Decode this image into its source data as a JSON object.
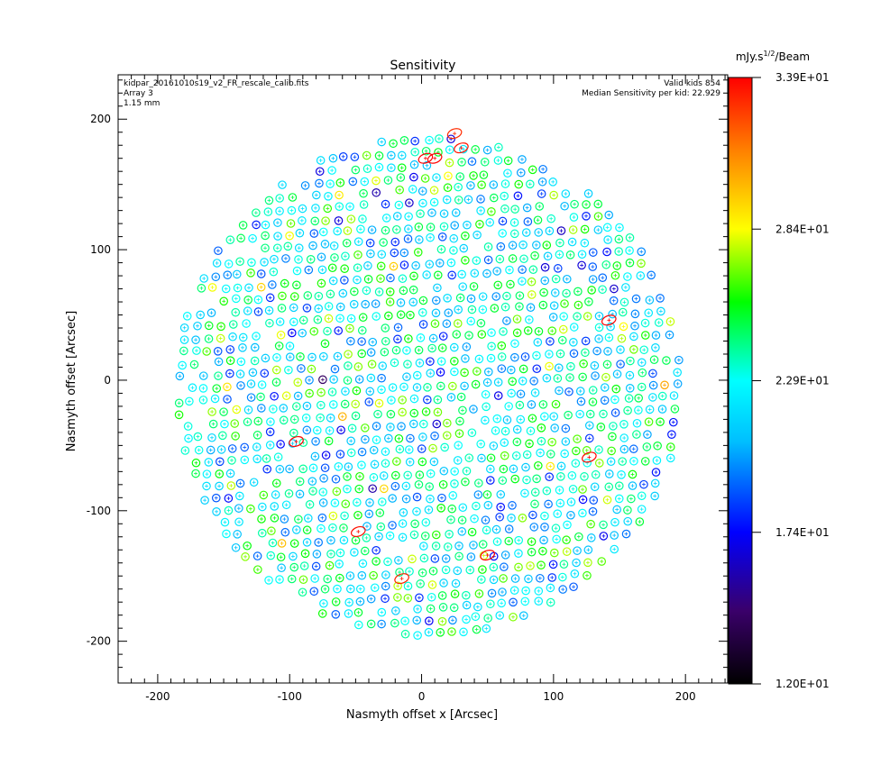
{
  "chart_data": {
    "type": "scatter",
    "title": "Sensitivity",
    "xlabel": "Nasmyth offset x [Arcsec]",
    "ylabel": "Nasmyth offset [Arcsec]",
    "xlim": [
      -230,
      232
    ],
    "ylim": [
      -232,
      234
    ],
    "xticks": [
      -200,
      -100,
      0,
      100,
      200
    ],
    "yticks": [
      -200,
      -100,
      0,
      100,
      200
    ],
    "info_left": [
      "kidpar_20161010s19_v2_FR_rescale_calib.fits",
      "Array 3",
      "1.15 mm"
    ],
    "info_right": [
      "Valid kids 854",
      "Median Sensitivity per kid: 22.929"
    ],
    "colorbar": {
      "unit_prefix": "mJy.s",
      "unit_sup": "1/2",
      "unit_suffix": "/Beam",
      "min": 12.0,
      "max": 33.9,
      "tick_labels": [
        "3.39E+01",
        "2.84E+01",
        "2.29E+01",
        "1.74E+01",
        "1.20E+01"
      ],
      "colormap": "rainbow"
    },
    "grid": false,
    "array_center": [
      5,
      -5
    ],
    "array_radius": 192,
    "valid_kids": 854,
    "median_sensitivity": 22.929,
    "highlighted_kids": [
      {
        "x": 3,
        "y": 170,
        "value": 33.9
      },
      {
        "x": 10,
        "y": 170,
        "value": 33.9
      },
      {
        "x": 30,
        "y": 178,
        "value": 33.5
      },
      {
        "x": -95,
        "y": -47,
        "value": 33.9
      },
      {
        "x": 127,
        "y": -59,
        "value": 33.8
      },
      {
        "x": 50,
        "y": -134,
        "value": 33.9
      },
      {
        "x": -48,
        "y": -116,
        "value": 33.6
      },
      {
        "x": 142,
        "y": 46,
        "value": 33.9
      },
      {
        "x": -15,
        "y": -152,
        "value": 33.2
      },
      {
        "x": 25,
        "y": 189,
        "value": 33.0
      }
    ]
  }
}
